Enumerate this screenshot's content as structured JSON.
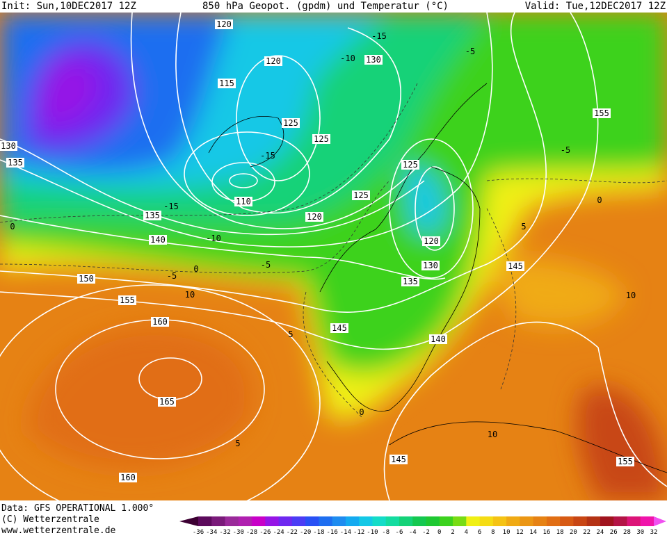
{
  "header": {
    "init": "Init: Sun,10DEC2017 12Z",
    "title": "850 hPa Geopot. (gpdm) und Temperatur (°C)",
    "valid": "Valid: Tue,12DEC2017 12Z"
  },
  "footer": {
    "data": "Data: GFS OPERATIONAL 1.000°",
    "copyright": "(C) Wetterzentrale",
    "url": "www.wetterzentrale.de"
  },
  "legend": {
    "labels": [
      -36,
      -34,
      -32,
      -30,
      -28,
      -26,
      -24,
      -22,
      -20,
      -18,
      -16,
      -14,
      -12,
      -10,
      -8,
      -6,
      -4,
      -2,
      0,
      2,
      4,
      6,
      8,
      10,
      12,
      14,
      16,
      18,
      20,
      22,
      24,
      26,
      28,
      30,
      32
    ],
    "colors": [
      "#3c0032",
      "#5c0a5c",
      "#7a1a7a",
      "#9a2a9a",
      "#b020b0",
      "#c800c8",
      "#9614e6",
      "#6e28f0",
      "#4b3cf5",
      "#2850f5",
      "#1e6ef0",
      "#1e8cf0",
      "#14aaf0",
      "#14c8e6",
      "#14dcc8",
      "#14dca0",
      "#14d278",
      "#14c850",
      "#1ec832",
      "#3cd21e",
      "#78dc14",
      "#f0f014",
      "#f5dc14",
      "#f5c314",
      "#f0aa14",
      "#eb9614",
      "#e68214",
      "#e16e14",
      "#d75a14",
      "#c84614",
      "#b43214",
      "#a0141e",
      "#b41446",
      "#dc1478",
      "#f014aa",
      "#f050f0"
    ]
  },
  "map": {
    "geopotential_labels": [
      120,
      120,
      130,
      115,
      125,
      125,
      130,
      135,
      125,
      110,
      125,
      120,
      135,
      140,
      120,
      130,
      145,
      135,
      150,
      155,
      160,
      145,
      140,
      165,
      145,
      155,
      160,
      155
    ],
    "temperature_labels": [
      -15,
      -10,
      -5,
      -15,
      -15,
      -10,
      -5,
      0,
      -5,
      10,
      -5,
      0,
      5,
      0,
      5,
      10,
      5,
      10,
      0
    ]
  }
}
